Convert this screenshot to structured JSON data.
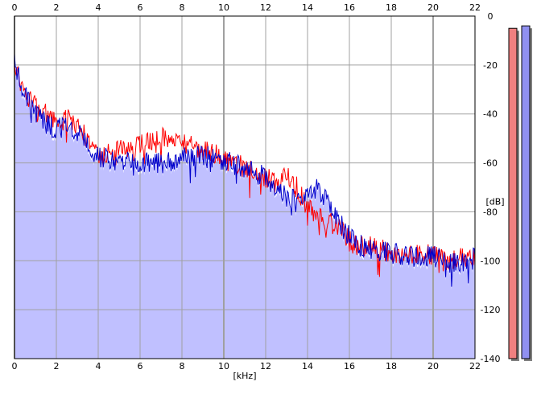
{
  "chart_data": {
    "type": "area",
    "xlabel": "[kHz]",
    "ylabel": "[dB]",
    "xlim": [
      0,
      22
    ],
    "ylim": [
      -140,
      0
    ],
    "x_ticks": [
      "0",
      "2",
      "4",
      "6",
      "8",
      "10",
      "12",
      "14",
      "16",
      "18",
      "20",
      "22"
    ],
    "y_ticks": [
      "0",
      "-20",
      "-40",
      "-60",
      "-80",
      "-100",
      "-120",
      "-140"
    ],
    "grid": true,
    "x_top_axis": true,
    "colors": {
      "fill": "#c0c0ff",
      "red": "#ff0000",
      "blue": "#0000cc",
      "meter_red": "#f08080",
      "meter_blue": "#9090f0",
      "grid": "#a0a0a0"
    },
    "series": [
      {
        "color": "red",
        "x": [
          0,
          0.25,
          0.5,
          1,
          1.5,
          2,
          2.5,
          3,
          3.5,
          4,
          5,
          6,
          7,
          7.5,
          8,
          9,
          10,
          11,
          11.5,
          12,
          12.5,
          13,
          13.5,
          14,
          14.5,
          15,
          15.5,
          16,
          16.5,
          17,
          17.5,
          18,
          19,
          20,
          20.5,
          21,
          21.5,
          22
        ],
        "y": [
          -18,
          -26,
          -32,
          -37,
          -40,
          -43,
          -42,
          -46,
          -50,
          -56,
          -55,
          -53,
          -50,
          -49,
          -52,
          -55,
          -58,
          -62,
          -64,
          -66,
          -68,
          -66,
          -70,
          -78,
          -82,
          -84,
          -86,
          -92,
          -94,
          -94,
          -95,
          -97,
          -97,
          -98,
          -100,
          -99,
          -99,
          -98
        ]
      },
      {
        "color": "blue",
        "x": [
          0,
          0.25,
          0.5,
          1,
          1.5,
          2,
          2.5,
          3,
          3.5,
          4,
          5,
          6,
          7,
          8,
          9,
          10,
          11,
          12,
          12.5,
          13,
          13.5,
          14,
          14.5,
          15,
          15.5,
          16,
          16.5,
          17,
          18,
          19,
          20,
          20.5,
          21,
          21.5,
          22
        ],
        "y": [
          -18,
          -27,
          -33,
          -38,
          -44,
          -46,
          -46,
          -48,
          -52,
          -58,
          -59,
          -60,
          -60,
          -58,
          -57,
          -59,
          -62,
          -66,
          -70,
          -74,
          -76,
          -72,
          -70,
          -76,
          -84,
          -90,
          -93,
          -95,
          -97,
          -98,
          -98,
          -100,
          -101,
          -100,
          -99
        ]
      }
    ],
    "meters": [
      {
        "color": "red",
        "level_db": -5
      },
      {
        "color": "blue",
        "level_db": -4
      }
    ]
  }
}
